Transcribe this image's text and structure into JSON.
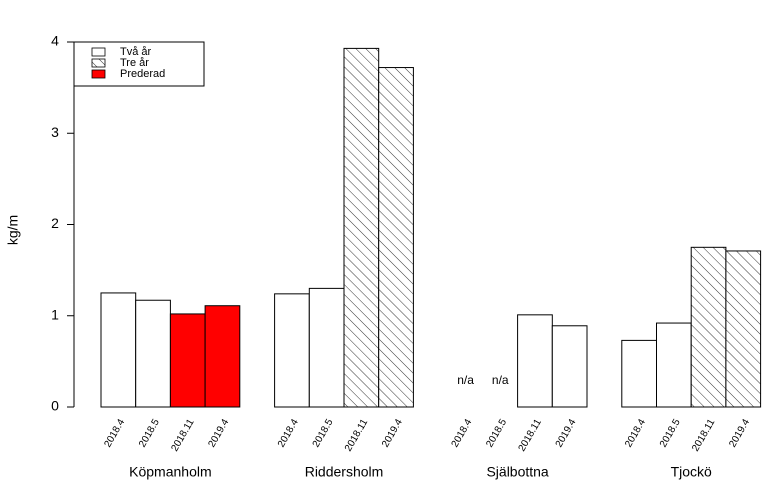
{
  "chart_data": {
    "type": "grouped-bar",
    "y_label": "kg/m",
    "ylim": [
      0,
      4
    ],
    "yticks": [
      0,
      1,
      2,
      3,
      4
    ],
    "legend": [
      {
        "name": "Två år",
        "fill": "white"
      },
      {
        "name": "Tre år",
        "fill": "hatch"
      },
      {
        "name": "Prederad",
        "fill": "#ff0000"
      }
    ],
    "groups": [
      {
        "name": "Köpmanholm",
        "categories": [
          "2018.4",
          "2018.5",
          "2018.11",
          "2019.4"
        ],
        "values": [
          1.25,
          1.17,
          1.02,
          1.11
        ],
        "kinds": [
          0,
          0,
          2,
          2
        ]
      },
      {
        "name": "Riddersholm",
        "categories": [
          "2018.4",
          "2018.5",
          "2018.11",
          "2019.4"
        ],
        "values": [
          1.24,
          1.3,
          3.93,
          3.72
        ],
        "kinds": [
          0,
          0,
          1,
          1
        ]
      },
      {
        "name": "Själbottna",
        "categories": [
          "2018.4",
          "2018.5",
          "2018.11",
          "2019.4"
        ],
        "values": [
          null,
          null,
          1.01,
          0.89
        ],
        "value_labels": [
          "n/a",
          "n/a",
          null,
          null
        ],
        "kinds": [
          0,
          0,
          0,
          0
        ]
      },
      {
        "name": "Tjockö",
        "categories": [
          "2018.4",
          "2018.5",
          "2018.11",
          "2019.4"
        ],
        "values": [
          0.73,
          0.92,
          1.75,
          1.71
        ],
        "kinds": [
          0,
          0,
          1,
          1
        ]
      }
    ]
  }
}
